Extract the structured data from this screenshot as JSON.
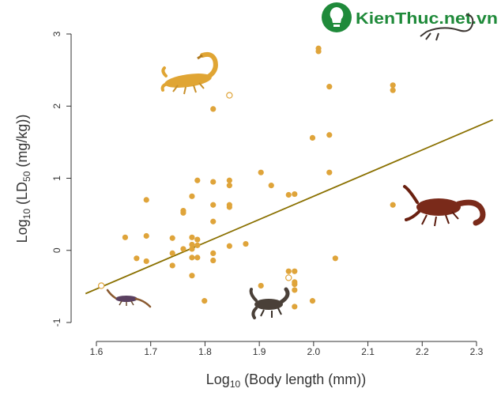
{
  "chart_data": {
    "type": "scatter",
    "xlabel_prefix": "Log",
    "xlabel_sub": "10",
    "xlabel_rest": " (Body length (mm))",
    "ylabel_prefix": "Log",
    "ylabel_sub": "10",
    "ylabel_mid": " (LD",
    "ylabel_sub2": "50",
    "ylabel_rest": " (mg/kg))",
    "x_ticks": [
      "1.6",
      "1.7",
      "1.8",
      "1.9",
      "2.0",
      "2.1",
      "2.2",
      "2.3"
    ],
    "y_ticks": [
      "-1",
      "0",
      "1",
      "2",
      "3"
    ],
    "xlim": [
      1.55,
      2.33
    ],
    "ylim": [
      -1.0,
      3.0
    ],
    "grid": false,
    "point_color": "#dfa43a",
    "line_color": "#8a7000",
    "points": [
      {
        "x": 1.609,
        "y": -0.49,
        "open": true
      },
      {
        "x": 1.653,
        "y": 0.18
      },
      {
        "x": 1.674,
        "y": -0.11
      },
      {
        "x": 1.692,
        "y": 0.7
      },
      {
        "x": 1.692,
        "y": 0.2
      },
      {
        "x": 1.692,
        "y": -0.15
      },
      {
        "x": 1.74,
        "y": 0.17
      },
      {
        "x": 1.74,
        "y": -0.04
      },
      {
        "x": 1.74,
        "y": -0.21
      },
      {
        "x": 1.76,
        "y": 0.55
      },
      {
        "x": 1.76,
        "y": 0.52
      },
      {
        "x": 1.76,
        "y": 0.02
      },
      {
        "x": 1.776,
        "y": 0.75
      },
      {
        "x": 1.776,
        "y": 0.18
      },
      {
        "x": 1.776,
        "y": 0.08
      },
      {
        "x": 1.776,
        "y": 0.02
      },
      {
        "x": 1.776,
        "y": -0.1
      },
      {
        "x": 1.776,
        "y": -0.35
      },
      {
        "x": 1.786,
        "y": 0.97
      },
      {
        "x": 1.786,
        "y": 0.15
      },
      {
        "x": 1.786,
        "y": 0.07
      },
      {
        "x": 1.786,
        "y": -0.1
      },
      {
        "x": 1.799,
        "y": -0.7
      },
      {
        "x": 1.815,
        "y": 1.96
      },
      {
        "x": 1.815,
        "y": 0.95
      },
      {
        "x": 1.815,
        "y": 0.63
      },
      {
        "x": 1.815,
        "y": 0.4
      },
      {
        "x": 1.815,
        "y": -0.04
      },
      {
        "x": 1.815,
        "y": -0.14
      },
      {
        "x": 1.845,
        "y": 2.15,
        "open": true
      },
      {
        "x": 1.845,
        "y": 0.97
      },
      {
        "x": 1.845,
        "y": 0.9
      },
      {
        "x": 1.845,
        "y": 0.63
      },
      {
        "x": 1.845,
        "y": 0.6
      },
      {
        "x": 1.845,
        "y": 0.06
      },
      {
        "x": 1.875,
        "y": 0.09
      },
      {
        "x": 1.903,
        "y": 1.08
      },
      {
        "x": 1.903,
        "y": -0.49
      },
      {
        "x": 1.922,
        "y": 0.9
      },
      {
        "x": 1.954,
        "y": 0.77
      },
      {
        "x": 1.954,
        "y": -0.29
      },
      {
        "x": 1.954,
        "y": -0.38,
        "open": true
      },
      {
        "x": 1.965,
        "y": 0.78
      },
      {
        "x": 1.965,
        "y": -0.29
      },
      {
        "x": 1.965,
        "y": -0.44
      },
      {
        "x": 1.965,
        "y": -0.47
      },
      {
        "x": 1.965,
        "y": -0.55
      },
      {
        "x": 1.965,
        "y": -0.78
      },
      {
        "x": 1.998,
        "y": 1.56
      },
      {
        "x": 1.998,
        "y": -0.7
      },
      {
        "x": 2.009,
        "y": 2.8
      },
      {
        "x": 2.009,
        "y": 2.76
      },
      {
        "x": 2.029,
        "y": 2.27
      },
      {
        "x": 2.029,
        "y": 1.6
      },
      {
        "x": 2.029,
        "y": 1.08
      },
      {
        "x": 2.04,
        "y": -0.11
      },
      {
        "x": 2.146,
        "y": 2.29
      },
      {
        "x": 2.146,
        "y": 2.22
      },
      {
        "x": 2.146,
        "y": 0.63
      }
    ],
    "fit_line": {
      "x": [
        1.58,
        2.33
      ],
      "y": [
        -0.6,
        1.81
      ]
    }
  },
  "logo": {
    "text": "KienThuc.net.vn",
    "icon": "lightbulb-icon",
    "color": "#1f8a3a"
  },
  "decorations": [
    {
      "name": "scorpion-yellow-illustration",
      "color": "#e0a534"
    },
    {
      "name": "scorpion-red-illustration",
      "color": "#7a2a1a"
    },
    {
      "name": "scorpion-black-illustration",
      "color": "#4a4038"
    },
    {
      "name": "scorpion-small-illustration",
      "color": "#5a4060"
    }
  ]
}
